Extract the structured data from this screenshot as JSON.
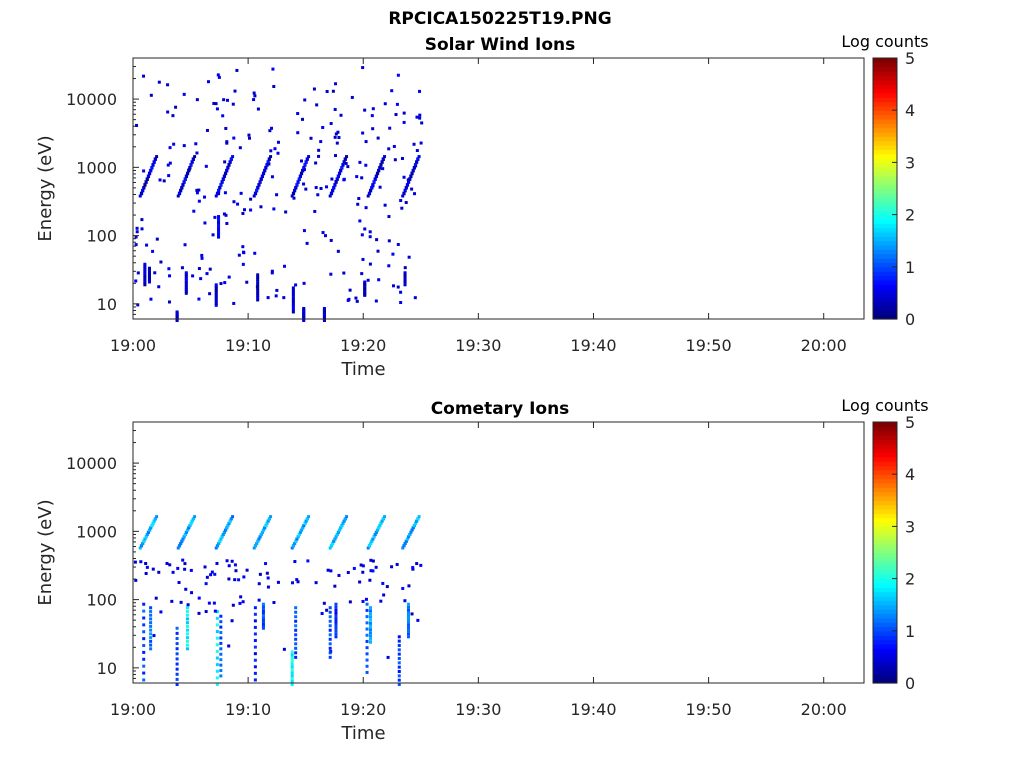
{
  "figure_title": "RPCICA150225T19.PNG",
  "chart_data": [
    {
      "type": "heatmap",
      "title": "Solar Wind Ions",
      "xlabel": "Time",
      "ylabel": "Energy (eV)",
      "x_ticks": [
        "19:00",
        "19:10",
        "19:20",
        "19:30",
        "19:40",
        "19:50",
        "20:00"
      ],
      "y_ticks": [
        "10",
        "100",
        "1000",
        "10000"
      ],
      "y_scale": "log",
      "ylim": [
        6,
        40000
      ],
      "xlim_minutes": [
        0,
        63.5
      ],
      "data_end_minutes": 25,
      "colorbar": {
        "label": "Log counts",
        "ticks": [
          "0",
          "1",
          "2",
          "3",
          "4",
          "5"
        ],
        "range": [
          0,
          5
        ],
        "colormap": "jet"
      },
      "sweep_starts_minutes": [
        0.5,
        3.8,
        7.1,
        10.4,
        13.7,
        17.0,
        20.3,
        23.3
      ],
      "sweep_energy_range": [
        400,
        1400
      ],
      "sweep_level": 0.5,
      "noise_level": 0.3,
      "low_energy_bursts": [
        {
          "t": 0.9,
          "e_lo": 20,
          "e_hi": 40,
          "level": 0.3
        },
        {
          "t": 1.3,
          "e_lo": 22,
          "e_hi": 35,
          "level": 0.3
        },
        {
          "t": 3.7,
          "e_lo": 6,
          "e_hi": 8,
          "level": 0.3
        },
        {
          "t": 4.5,
          "e_lo": 15,
          "e_hi": 30,
          "level": 0.4
        },
        {
          "t": 7.1,
          "e_lo": 10,
          "e_hi": 20,
          "level": 0.4
        },
        {
          "t": 7.3,
          "e_lo": 100,
          "e_hi": 200,
          "level": 0.6
        },
        {
          "t": 10.7,
          "e_lo": 12,
          "e_hi": 28,
          "level": 0.3
        },
        {
          "t": 13.8,
          "e_lo": 8,
          "e_hi": 18,
          "level": 0.4
        },
        {
          "t": 14.7,
          "e_lo": 6,
          "e_hi": 9,
          "level": 0.4
        },
        {
          "t": 16.5,
          "e_lo": 6,
          "e_hi": 9,
          "level": 0.3
        },
        {
          "t": 20.0,
          "e_lo": 14,
          "e_hi": 22,
          "level": 0.3
        },
        {
          "t": 23.5,
          "e_lo": 20,
          "e_hi": 30,
          "level": 0.3
        }
      ]
    },
    {
      "type": "heatmap",
      "title": "Cometary Ions",
      "xlabel": "Time",
      "ylabel": "Energy (eV)",
      "x_ticks": [
        "19:00",
        "19:10",
        "19:20",
        "19:30",
        "19:40",
        "19:50",
        "20:00"
      ],
      "y_ticks": [
        "10",
        "100",
        "1000",
        "10000"
      ],
      "y_scale": "log",
      "ylim": [
        6,
        40000
      ],
      "xlim_minutes": [
        0,
        63.5
      ],
      "data_end_minutes": 25,
      "colorbar": {
        "label": "Log counts",
        "ticks": [
          "0",
          "1",
          "2",
          "3",
          "4",
          "5"
        ],
        "range": [
          0,
          5
        ],
        "colormap": "jet"
      },
      "sweep_starts_minutes": [
        0.5,
        3.8,
        7.1,
        10.4,
        13.7,
        17.0,
        20.3,
        23.3
      ],
      "sweep_energy_range": [
        600,
        1600
      ],
      "sweep_level": 1.5,
      "noise_level": 0.3,
      "low_energy_bursts": [
        {
          "t": 0.8,
          "e_lo": 7,
          "e_hi": 90,
          "level": 1.0
        },
        {
          "t": 1.4,
          "e_lo": 20,
          "e_hi": 80,
          "level": 1.2
        },
        {
          "t": 3.7,
          "e_lo": 6,
          "e_hi": 40,
          "level": 1.0
        },
        {
          "t": 4.6,
          "e_lo": 20,
          "e_hi": 80,
          "level": 1.8
        },
        {
          "t": 7.2,
          "e_lo": 6,
          "e_hi": 70,
          "level": 1.8
        },
        {
          "t": 7.5,
          "e_lo": 8,
          "e_hi": 60,
          "level": 1.0
        },
        {
          "t": 10.5,
          "e_lo": 7,
          "e_hi": 80,
          "level": 0.8
        },
        {
          "t": 11.2,
          "e_lo": 40,
          "e_hi": 90,
          "level": 1.0
        },
        {
          "t": 13.7,
          "e_lo": 6,
          "e_hi": 18,
          "level": 1.9
        },
        {
          "t": 14.0,
          "e_lo": 15,
          "e_hi": 80,
          "level": 1.0
        },
        {
          "t": 17.0,
          "e_lo": 15,
          "e_hi": 80,
          "level": 1.0
        },
        {
          "t": 17.5,
          "e_lo": 30,
          "e_hi": 90,
          "level": 0.8
        },
        {
          "t": 20.2,
          "e_lo": 9,
          "e_hi": 90,
          "level": 1.0
        },
        {
          "t": 20.5,
          "e_lo": 25,
          "e_hi": 80,
          "level": 1.4
        },
        {
          "t": 23.0,
          "e_lo": 6,
          "e_hi": 30,
          "level": 0.9
        },
        {
          "t": 23.8,
          "e_lo": 30,
          "e_hi": 90,
          "level": 1.2
        }
      ]
    }
  ]
}
